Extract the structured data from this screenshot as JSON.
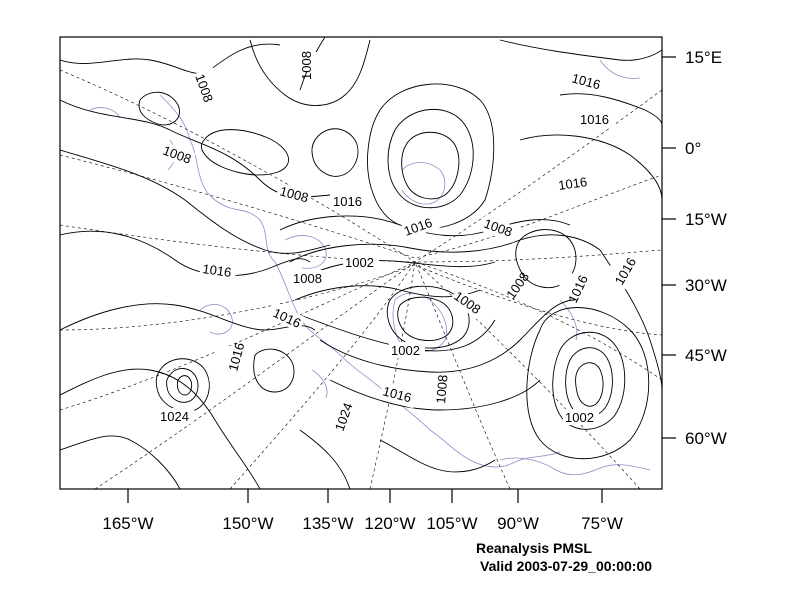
{
  "map": {
    "title": "Reanalysis PMSL",
    "valid": "Valid 2003-07-29_00:00:00",
    "bottom_axis_labels": [
      "165°W",
      "150°W",
      "135°W",
      "120°W",
      "105°W",
      "90°W",
      "75°W"
    ],
    "right_axis_labels": [
      "15°E",
      "0°",
      "15°W",
      "30°W",
      "45°W",
      "60°W"
    ],
    "contour_labels": [
      "1008",
      "1008",
      "1008",
      "1008",
      "1016",
      "1016",
      "1016",
      "1016",
      "1002",
      "1008",
      "1008",
      "1008",
      "1008",
      "1016",
      "1016",
      "1016",
      "1002",
      "1008",
      "1016",
      "1024",
      "1016",
      "1002",
      "1016",
      "1024",
      "1016"
    ],
    "colors": {
      "contour": "#000000",
      "coastline": "#9b86c9",
      "grid": "#000000",
      "frame": "#000000"
    }
  }
}
